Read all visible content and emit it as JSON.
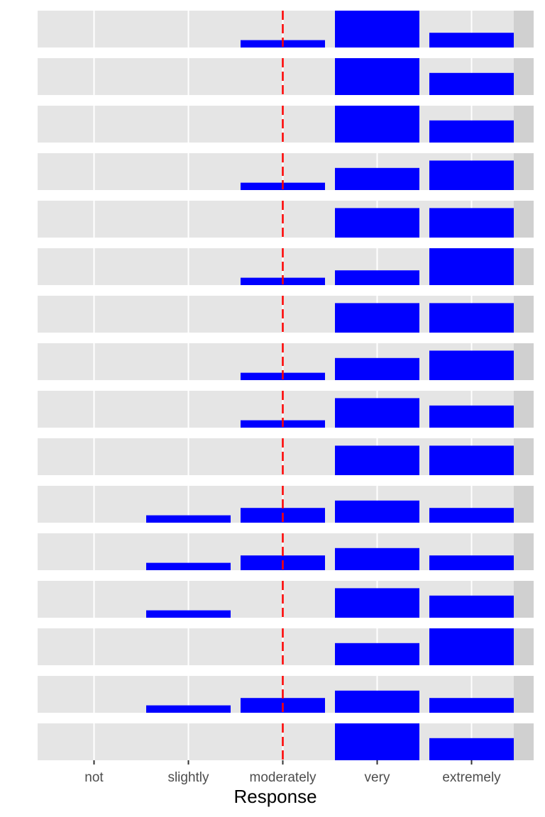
{
  "chart_data": {
    "type": "bar",
    "layout": "faceted-histogram",
    "categories": [
      "not",
      "slightly",
      "moderately",
      "very",
      "extremely"
    ],
    "xlabel": "Response",
    "ylabel": "",
    "ylim": [
      0,
      1
    ],
    "reference_line": {
      "category": "moderately",
      "style": "dashed",
      "color": "#ff0000"
    },
    "bar_color": "#0000ff",
    "panel_background": "#e5e5e5",
    "strip_background": "#d0d0d0",
    "grid": true,
    "panels": [
      {
        "values": [
          0,
          0,
          0.2,
          1.0,
          0.4
        ]
      },
      {
        "values": [
          0,
          0,
          0,
          1.0,
          0.6
        ]
      },
      {
        "values": [
          0,
          0,
          0,
          1.0,
          0.6
        ]
      },
      {
        "values": [
          0,
          0,
          0.2,
          0.6,
          0.8
        ]
      },
      {
        "values": [
          0,
          0,
          0,
          0.8,
          0.8
        ]
      },
      {
        "values": [
          0,
          0,
          0.2,
          0.4,
          1.0
        ]
      },
      {
        "values": [
          0,
          0,
          0,
          0.8,
          0.8
        ]
      },
      {
        "values": [
          0,
          0,
          0.2,
          0.6,
          0.8
        ]
      },
      {
        "values": [
          0,
          0,
          0.2,
          0.8,
          0.6
        ]
      },
      {
        "values": [
          0,
          0,
          0,
          0.8,
          0.8
        ]
      },
      {
        "values": [
          0,
          0.2,
          0.4,
          0.6,
          0.4
        ]
      },
      {
        "values": [
          0,
          0.2,
          0.4,
          0.6,
          0.4
        ]
      },
      {
        "values": [
          0,
          0.2,
          0,
          0.8,
          0.6
        ]
      },
      {
        "values": [
          0,
          0,
          0,
          0.6,
          1.0
        ]
      },
      {
        "values": [
          0,
          0.2,
          0.4,
          0.6,
          0.4
        ]
      },
      {
        "values": [
          0,
          0,
          0,
          1.0,
          0.6
        ]
      }
    ]
  }
}
